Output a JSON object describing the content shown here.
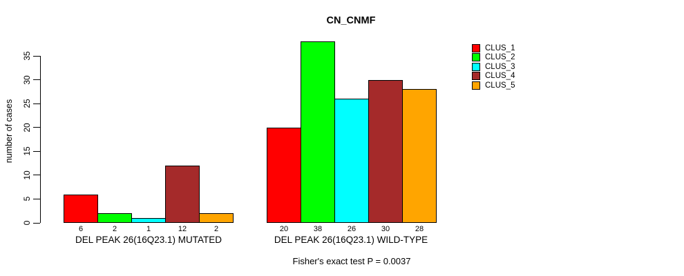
{
  "chart": {
    "title": "CN_CNMF",
    "ylabel": "number of cases",
    "annotation": "Fisher's exact test P = 0.0037"
  },
  "chart_data": {
    "type": "bar",
    "title": "CN_CNMF",
    "xlabel": "",
    "ylabel": "number of cases",
    "ylim": [
      0,
      35
    ],
    "yticks": [
      0,
      5,
      10,
      15,
      20,
      25,
      30,
      35
    ],
    "grid": false,
    "legend_position": "right-outside",
    "bar_value_labels": true,
    "categories": [
      "DEL PEAK 26(16Q23.1) MUTATED",
      "DEL PEAK 26(16Q23.1) WILD-TYPE"
    ],
    "series": [
      {
        "name": "CLUS_1",
        "color": "#FF0000",
        "values": [
          6,
          20
        ]
      },
      {
        "name": "CLUS_2",
        "color": "#00FF00",
        "values": [
          2,
          38
        ]
      },
      {
        "name": "CLUS_3",
        "color": "#00FFFF",
        "values": [
          1,
          26
        ]
      },
      {
        "name": "CLUS_4",
        "color": "#A52A2A",
        "values": [
          12,
          30
        ]
      },
      {
        "name": "CLUS_5",
        "color": "#FFA500",
        "values": [
          2,
          28
        ]
      }
    ],
    "annotation": "Fisher's exact test P = 0.0037"
  }
}
